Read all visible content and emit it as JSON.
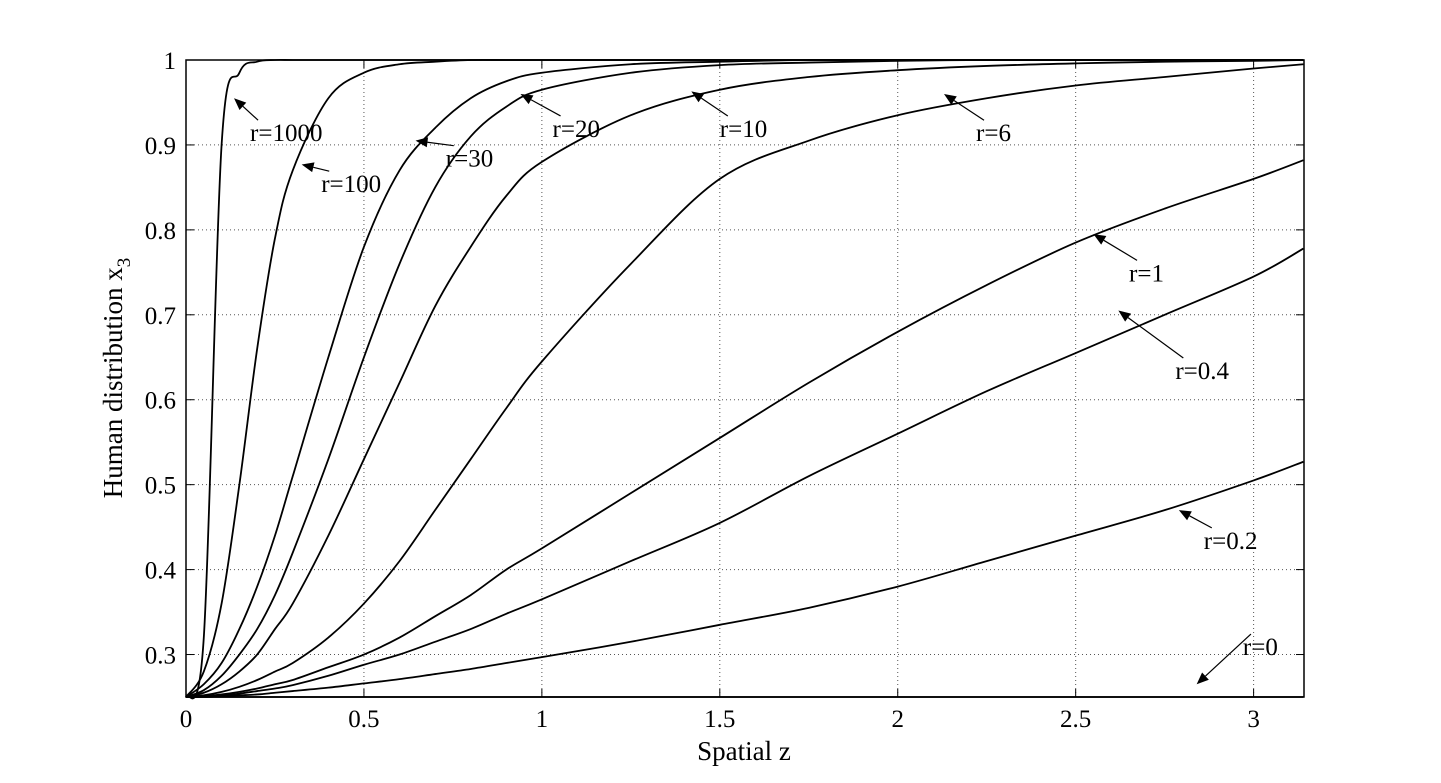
{
  "chart_data": {
    "type": "line",
    "xlabel": "Spatial z",
    "ylabel": "Human distribution x",
    "ylabel_subscript": "3",
    "xlim": [
      0,
      3.14159
    ],
    "ylim": [
      0.25,
      1
    ],
    "xticks": [
      0,
      0.5,
      1,
      1.5,
      2,
      2.5,
      3
    ],
    "xtick_labels": [
      "0",
      "0.5",
      "1",
      "1.5",
      "2",
      "2.5",
      "3"
    ],
    "yticks": [
      0.3,
      0.4,
      0.5,
      0.6,
      0.7,
      0.8,
      0.9,
      1
    ],
    "ytick_labels": [
      "0.3",
      "0.4",
      "0.5",
      "0.6",
      "0.7",
      "0.8",
      "0.9",
      "1"
    ],
    "grid": true,
    "x": [
      0,
      0.05,
      0.1,
      0.15,
      0.2,
      0.25,
      0.3,
      0.4,
      0.5,
      0.6,
      0.7,
      0.8,
      0.9,
      1.0,
      1.25,
      1.5,
      1.75,
      2.0,
      2.25,
      2.5,
      2.75,
      3.0,
      3.14
    ],
    "series": [
      {
        "values": [
          0.25,
          0.32,
          0.9,
          0.985,
          0.998,
          1,
          1,
          1,
          1,
          1,
          1,
          1,
          1,
          1,
          1,
          1,
          1,
          1,
          1,
          1,
          1,
          1,
          1
        ]
      },
      {
        "values": [
          0.25,
          0.28,
          0.36,
          0.5,
          0.66,
          0.79,
          0.87,
          0.955,
          0.985,
          0.995,
          0.998,
          1,
          1,
          1,
          1,
          1,
          1,
          1,
          1,
          1,
          1,
          1,
          1
        ]
      },
      {
        "values": [
          0.25,
          0.265,
          0.29,
          0.33,
          0.38,
          0.44,
          0.51,
          0.65,
          0.78,
          0.87,
          0.92,
          0.955,
          0.975,
          0.985,
          0.995,
          0.998,
          1,
          1,
          1,
          1,
          1,
          1,
          1
        ]
      },
      {
        "values": [
          0.25,
          0.258,
          0.275,
          0.3,
          0.33,
          0.37,
          0.42,
          0.53,
          0.65,
          0.76,
          0.85,
          0.91,
          0.945,
          0.965,
          0.985,
          0.994,
          0.997,
          0.999,
          1,
          1,
          1,
          1,
          1
        ]
      },
      {
        "values": [
          0.25,
          0.255,
          0.265,
          0.28,
          0.3,
          0.33,
          0.36,
          0.44,
          0.53,
          0.62,
          0.71,
          0.78,
          0.84,
          0.88,
          0.935,
          0.965,
          0.98,
          0.988,
          0.993,
          0.996,
          0.998,
          0.999,
          1
        ]
      },
      {
        "values": [
          0.25,
          0.252,
          0.256,
          0.262,
          0.27,
          0.28,
          0.29,
          0.32,
          0.36,
          0.41,
          0.47,
          0.53,
          0.59,
          0.645,
          0.76,
          0.86,
          0.905,
          0.935,
          0.955,
          0.97,
          0.98,
          0.99,
          0.995
        ]
      },
      {
        "values": [
          0.25,
          0.251,
          0.253,
          0.256,
          0.26,
          0.265,
          0.27,
          0.285,
          0.3,
          0.32,
          0.345,
          0.37,
          0.4,
          0.425,
          0.49,
          0.555,
          0.62,
          0.68,
          0.735,
          0.785,
          0.825,
          0.86,
          0.882
        ]
      },
      {
        "values": [
          0.25,
          0.251,
          0.252,
          0.254,
          0.257,
          0.26,
          0.264,
          0.275,
          0.288,
          0.3,
          0.315,
          0.33,
          0.348,
          0.365,
          0.41,
          0.455,
          0.51,
          0.56,
          0.61,
          0.655,
          0.7,
          0.745,
          0.778
        ]
      },
      {
        "values": [
          0.25,
          0.25,
          0.251,
          0.252,
          0.253,
          0.255,
          0.257,
          0.261,
          0.266,
          0.271,
          0.277,
          0.283,
          0.29,
          0.297,
          0.315,
          0.335,
          0.355,
          0.38,
          0.41,
          0.44,
          0.47,
          0.505,
          0.527
        ]
      },
      {
        "values": [
          0.25,
          0.25,
          0.25,
          0.25,
          0.25,
          0.25,
          0.25,
          0.25,
          0.25,
          0.25,
          0.25,
          0.25,
          0.25,
          0.25,
          0.25,
          0.25,
          0.25,
          0.25,
          0.25,
          0.25,
          0.25,
          0.25,
          0.25
        ]
      }
    ],
    "annotations": [
      {
        "text": "r=1000",
        "label_x": 0.18,
        "label_y": 0.915,
        "point_x": 0.135,
        "point_y": 0.955
      },
      {
        "text": "r=100",
        "label_x": 0.38,
        "label_y": 0.855,
        "point_x": 0.325,
        "point_y": 0.877
      },
      {
        "text": "r=30",
        "label_x": 0.73,
        "label_y": 0.885,
        "point_x": 0.645,
        "point_y": 0.905
      },
      {
        "text": "r=20",
        "label_x": 1.03,
        "label_y": 0.92,
        "point_x": 0.94,
        "point_y": 0.96
      },
      {
        "text": "r=10",
        "label_x": 1.5,
        "label_y": 0.92,
        "point_x": 1.42,
        "point_y": 0.963
      },
      {
        "text": "r=6",
        "label_x": 2.22,
        "label_y": 0.915,
        "point_x": 2.13,
        "point_y": 0.96
      },
      {
        "text": "r=1",
        "label_x": 2.65,
        "label_y": 0.75,
        "point_x": 2.55,
        "point_y": 0.795
      },
      {
        "text": "r=0.4",
        "label_x": 2.78,
        "label_y": 0.635,
        "point_x": 2.62,
        "point_y": 0.705
      },
      {
        "text": "r=0.2",
        "label_x": 2.86,
        "label_y": 0.435,
        "point_x": 2.79,
        "point_y": 0.47
      },
      {
        "text": "r=0",
        "label_x": 2.97,
        "label_y": 0.31,
        "point_x": 2.84,
        "point_y": 0.265
      }
    ]
  }
}
